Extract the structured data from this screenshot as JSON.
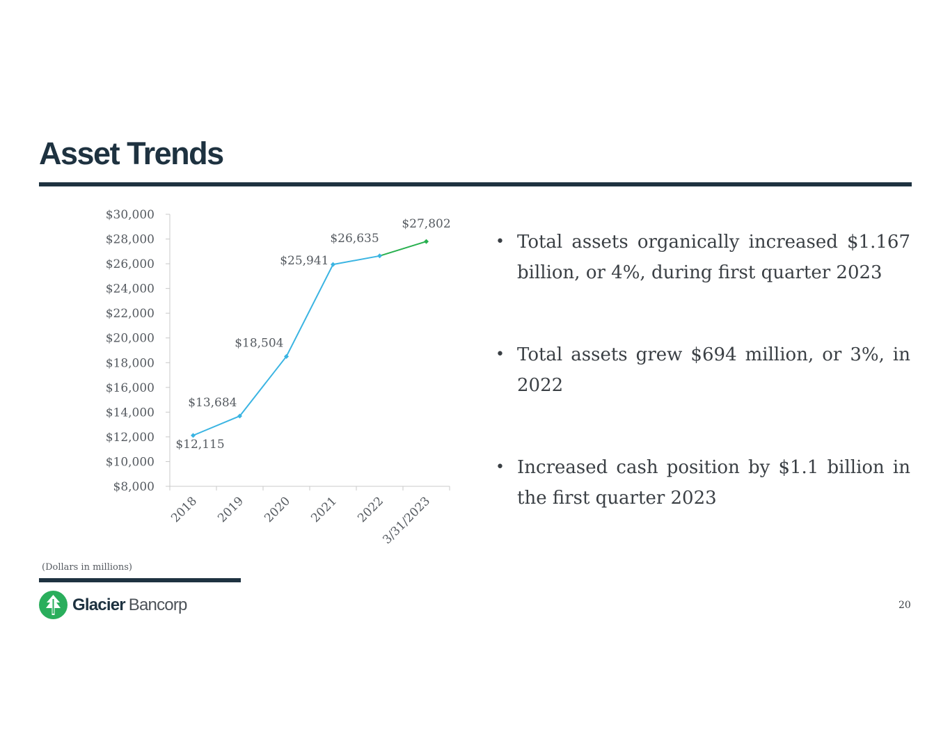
{
  "title": "Asset Trends",
  "bullets": [
    "Total assets organically increased $1.167 billion, or 4%, during first quarter 2023",
    "Total assets grew $694 million, or 3%, in 2022",
    "Increased cash position by $1.1 billion in the first quarter 2023"
  ],
  "footnote": "(Dollars in millions)",
  "logo": {
    "strong": "Glacier",
    "light": "Bancorp"
  },
  "page_number": "20",
  "colors": {
    "navy": "#1e3240",
    "series_blue": "#3ab4e2",
    "series_green": "#28b04f",
    "logo_green": "#2aae5c"
  },
  "chart_data": {
    "type": "line",
    "title": "",
    "xlabel": "",
    "ylabel": "",
    "categories": [
      "2018",
      "2019",
      "2020",
      "2021",
      "2022",
      "3/31/2023"
    ],
    "values": [
      12115,
      13684,
      18504,
      25941,
      26635,
      27802
    ],
    "data_labels": [
      "$12,115",
      "$13,684",
      "$18,504",
      "$25,941",
      "$26,635",
      "$27,802"
    ],
    "ylim": [
      8000,
      30000
    ],
    "yticks": [
      8000,
      10000,
      12000,
      14000,
      16000,
      18000,
      20000,
      22000,
      24000,
      26000,
      28000,
      30000
    ],
    "ytick_labels": [
      "$8,000",
      "$10,000",
      "$12,000",
      "$14,000",
      "$16,000",
      "$18,000",
      "$20,000",
      "$22,000",
      "$24,000",
      "$26,000",
      "$28,000",
      "$30,000"
    ],
    "grid": false,
    "legend": "none",
    "last_segment_color": "green"
  }
}
